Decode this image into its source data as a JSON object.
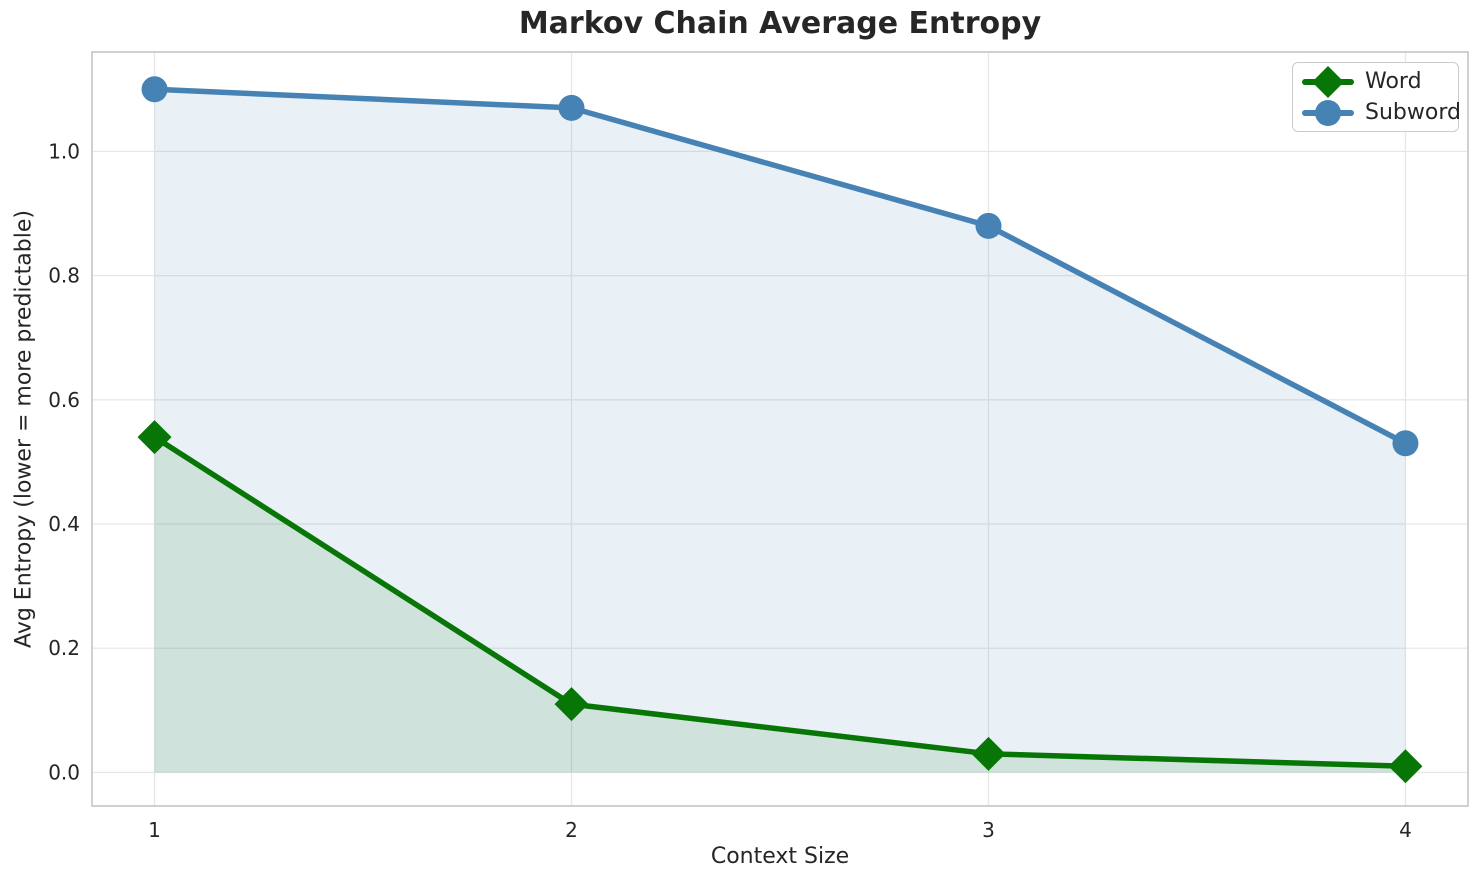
{
  "chart_data": {
    "type": "line",
    "title": "Markov Chain Average Entropy",
    "xlabel": "Context Size",
    "ylabel": "Avg Entropy (lower = more predictable)",
    "x": [
      1,
      2,
      3,
      4
    ],
    "xticklabels": [
      "1",
      "2",
      "3",
      "4"
    ],
    "yticks": [
      0.0,
      0.2,
      0.4,
      0.6,
      0.8,
      1.0
    ],
    "yticklabels": [
      "0.0",
      "0.2",
      "0.4",
      "0.6",
      "0.8",
      "1.0"
    ],
    "xlim": [
      0.85,
      4.15
    ],
    "ylim": [
      -0.054,
      1.16
    ],
    "grid": true,
    "legend_position": "upper right",
    "series": [
      {
        "name": "Word",
        "marker": "diamond",
        "color": "#077607",
        "fill_alpha": 0.11,
        "values": [
          0.54,
          0.11,
          0.03,
          0.01
        ]
      },
      {
        "name": "Subword",
        "marker": "circle",
        "color": "#4682b4",
        "fill_alpha": 0.12,
        "values": [
          1.1,
          1.07,
          0.88,
          0.53
        ]
      }
    ],
    "colors": {
      "grid": "#e7e7e7",
      "spine": "#cbcbcb",
      "text": "#262626"
    }
  }
}
